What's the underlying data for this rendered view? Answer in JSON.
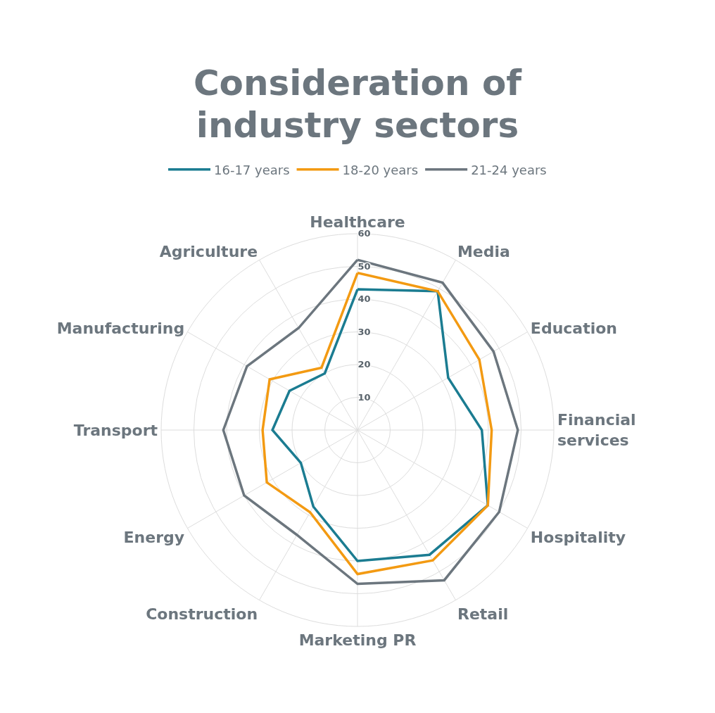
{
  "chart_data": {
    "type": "radar",
    "title": "Consideration of industry sectors",
    "categories": [
      "Healthcare",
      "Media",
      "Education",
      "Financial services",
      "Hospitality",
      "Retail",
      "Marketing PR",
      "Construction",
      "Energy",
      "Transport",
      "Manufacturing",
      "Agriculture"
    ],
    "series": [
      {
        "name": "16-17 years",
        "color": "#1b7c91",
        "values": [
          43,
          49,
          32,
          38,
          46,
          44,
          40,
          27,
          20,
          26,
          24,
          20
        ]
      },
      {
        "name": "18-20 years",
        "color": "#f39a12",
        "values": [
          48,
          49,
          43,
          41,
          46,
          46,
          44,
          29,
          32,
          29,
          31,
          22
        ]
      },
      {
        "name": "21-24 years",
        "color": "#6c767e",
        "values": [
          52,
          52,
          48,
          49,
          50,
          53,
          47,
          37,
          40,
          41,
          39,
          36
        ]
      }
    ],
    "ylim": [
      0,
      60
    ],
    "yticks": [
      10,
      20,
      30,
      40,
      50,
      60
    ],
    "grid": true,
    "legend": "top",
    "marker": "none",
    "line_style": "solid"
  }
}
